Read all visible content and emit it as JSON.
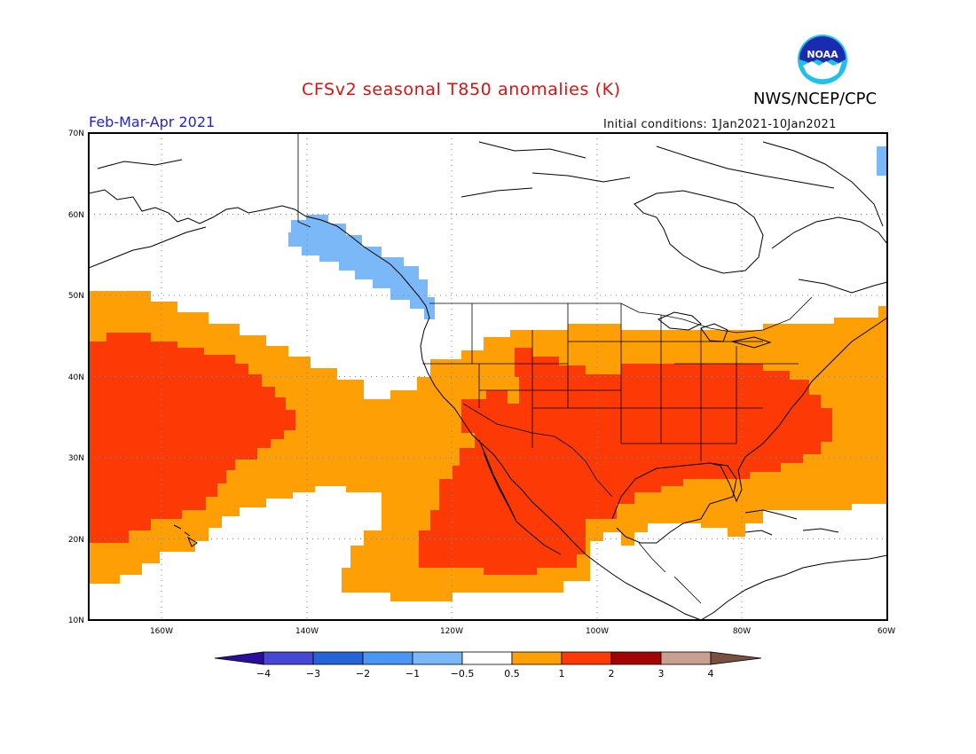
{
  "header": {
    "title": "CFSv2 seasonal T850 anomalies (K)",
    "org": "NWS/NCEP/CPC",
    "logo_text": "NOAA",
    "period": "Feb-Mar-Apr 2021",
    "initial_conditions": "Initial conditions: 1Jan2021-10Jan2021"
  },
  "map": {
    "lat_range": [
      10,
      70
    ],
    "lon_range": [
      -170,
      -60
    ],
    "lat_ticks": [
      "10N",
      "20N",
      "30N",
      "40N",
      "50N",
      "60N",
      "70N"
    ],
    "lon_ticks": [
      "160W",
      "140W",
      "120W",
      "100W",
      "80W",
      "60W"
    ]
  },
  "colorbar": {
    "colors": [
      "#2a0f9e",
      "#4747d6",
      "#2464d6",
      "#4a96f5",
      "#7ab8f8",
      "#ffffff",
      "#fd9f05",
      "#fd3a05",
      "#a20404",
      "#c9a08f",
      "#7a5040"
    ],
    "labels": [
      "-4",
      "-3",
      "-2",
      "-1",
      "-0.5",
      "0.5",
      "1",
      "2",
      "3",
      "4"
    ]
  }
}
